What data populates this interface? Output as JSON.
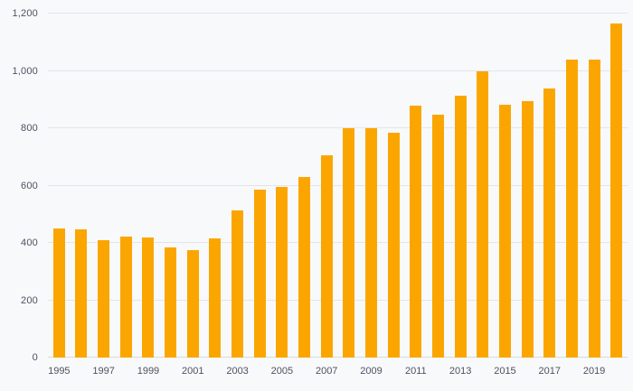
{
  "chart_data": {
    "type": "bar",
    "title": "",
    "xlabel": "",
    "ylabel": "",
    "categories": [
      1995,
      1996,
      1997,
      1998,
      1999,
      2000,
      2001,
      2002,
      2003,
      2004,
      2005,
      2006,
      2007,
      2008,
      2009,
      2010,
      2011,
      2012,
      2013,
      2014,
      2015,
      2016,
      2017,
      2018,
      2019,
      2020
    ],
    "values": [
      450,
      447,
      410,
      423,
      420,
      385,
      375,
      415,
      515,
      585,
      595,
      630,
      705,
      800,
      800,
      785,
      878,
      848,
      915,
      997,
      883,
      895,
      940,
      1040,
      1040,
      1165
    ],
    "ylim": [
      0,
      1200
    ],
    "yticks": [
      0,
      200,
      400,
      600,
      800,
      1000,
      1200
    ],
    "ytick_labels": [
      "0",
      "200",
      "400",
      "600",
      "800",
      "1,000",
      "1,200"
    ],
    "xtick_labels": [
      "1995",
      "",
      "1997",
      "",
      "1999",
      "",
      "2001",
      "",
      "2003",
      "",
      "2005",
      "",
      "2007",
      "",
      "2009",
      "",
      "2011",
      "",
      "2013",
      "",
      "2015",
      "",
      "2017",
      "",
      "2019",
      ""
    ],
    "grid": true,
    "legend": "none",
    "bar_color": "#fba600",
    "background_color": "#f8f9fb",
    "gridline_color": "#e4e5ea",
    "tick_text_color": "#4f5061"
  }
}
